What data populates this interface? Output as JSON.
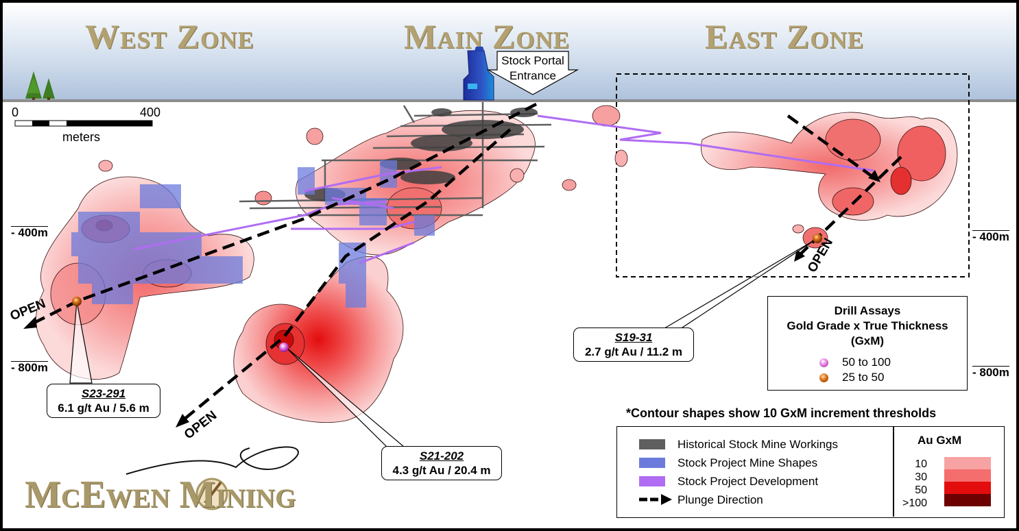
{
  "zones": {
    "west": "West Zone",
    "main": "Main Zone",
    "east": "East Zone"
  },
  "scale_bar": {
    "start": "0",
    "end": "400",
    "unit": "meters"
  },
  "portal": {
    "line1": "Stock Portal",
    "line2": "Entrance"
  },
  "depths": {
    "left_400": "- 400m",
    "left_800": "- 800m",
    "right_400": "- 400m",
    "right_800": "- 800m"
  },
  "open_label": "OPEN",
  "callouts": {
    "s23": {
      "hole": "S23-291",
      "value": "6.1 g/t Au / 5.6 m"
    },
    "s21": {
      "hole": "S21-202",
      "value": "4.3 g/t Au / 20.4 m"
    },
    "s19": {
      "hole": "S19-31",
      "value": "2.7 g/t Au / 11.2 m"
    }
  },
  "drill_assays": {
    "title1": "Drill Assays",
    "title2": "Gold Grade x True Thickness",
    "title3": "(GxM)",
    "items": [
      {
        "label": "50 to 100",
        "color": "#d64fd2"
      },
      {
        "label": "25 to 50",
        "color": "#c2590e"
      }
    ]
  },
  "contour_note": "*Contour shapes show 10 GxM increment thresholds",
  "legend": {
    "items": [
      {
        "label": "Historical Stock Mine Workings",
        "color": "#5f5f5f"
      },
      {
        "label": "Stock Project Mine Shapes",
        "color": "#6b7bdc"
      },
      {
        "label": "Stock Project Development",
        "color": "#b06cf2"
      },
      {
        "label": "Plunge Direction",
        "color": "#000000"
      }
    ],
    "grade_title": "Au GxM",
    "grades": [
      {
        "label": "10",
        "color": "#f7a3a3"
      },
      {
        "label": "30",
        "color": "#f56e6e"
      },
      {
        "label": "50",
        "color": "#e30d0d"
      },
      {
        "label": ">100",
        "color": "#6d0000"
      }
    ]
  },
  "logo": {
    "text": "McEwen Mining"
  }
}
